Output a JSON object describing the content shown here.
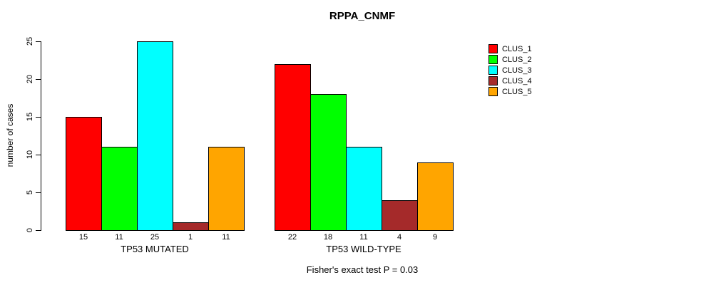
{
  "title": "RPPA_CNMF",
  "footer": "Fisher's exact test P = 0.03",
  "y_axis": {
    "label": "number of cases"
  },
  "legend": {
    "entries": [
      {
        "label": "CLUS_1",
        "color": "#FF0000"
      },
      {
        "label": "CLUS_2",
        "color": "#00FF00"
      },
      {
        "label": "CLUS_3",
        "color": "#00FFFF"
      },
      {
        "label": "CLUS_4",
        "color": "#A52A2A"
      },
      {
        "label": "CLUS_5",
        "color": "#FFA500"
      }
    ]
  },
  "chart_data": {
    "type": "bar",
    "title": "RPPA_CNMF",
    "xlabel": "",
    "ylabel": "number of cases",
    "ylim": [
      0,
      25
    ],
    "yticks": [
      0,
      5,
      10,
      15,
      20,
      25
    ],
    "grid": false,
    "legend_position": "top-right",
    "series_names": [
      "CLUS_1",
      "CLUS_2",
      "CLUS_3",
      "CLUS_4",
      "CLUS_5"
    ],
    "series_colors": [
      "#FF0000",
      "#00FF00",
      "#00FFFF",
      "#A52A2A",
      "#FFA500"
    ],
    "groups": [
      {
        "label": "TP53 MUTATED",
        "values": [
          15,
          11,
          25,
          1,
          11
        ]
      },
      {
        "label": "TP53 WILD-TYPE",
        "values": [
          22,
          18,
          11,
          4,
          9
        ]
      }
    ],
    "annotation": "Fisher's exact test P = 0.03"
  }
}
